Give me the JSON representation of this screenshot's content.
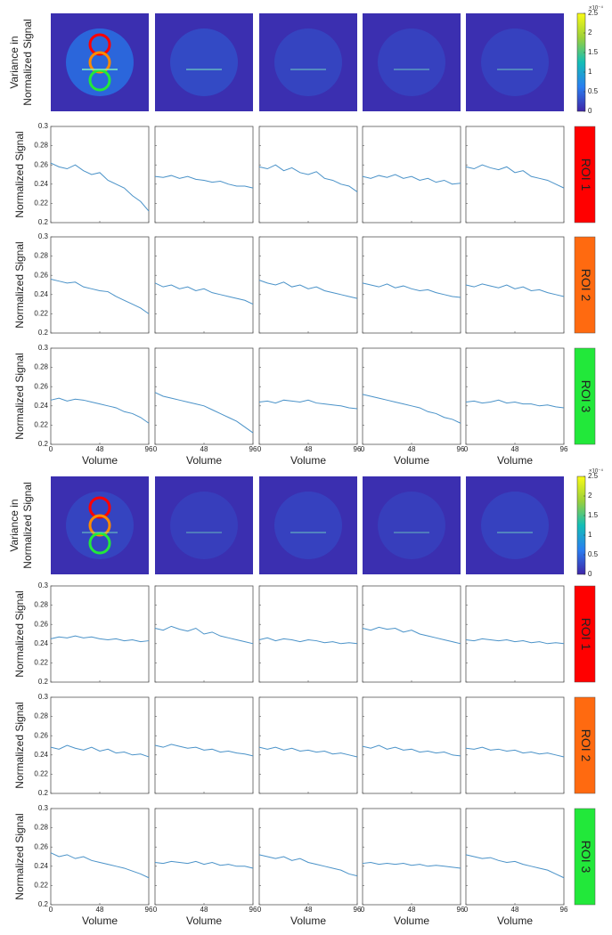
{
  "axes": {
    "xlabel": "Volume",
    "ylabel": "Normalized Signal",
    "image_label": [
      "Variance in",
      "Normalized Signal"
    ],
    "x": [
      0,
      8,
      16,
      24,
      32,
      40,
      48,
      56,
      64,
      72,
      80,
      88,
      96
    ],
    "xlim": [
      0,
      96
    ],
    "xticks": [
      0,
      48,
      96
    ],
    "ylim": [
      0.2,
      0.3
    ],
    "yticks": [
      0.2,
      0.22,
      0.24,
      0.26,
      0.28,
      0.3
    ],
    "line_color": "#4a92c8"
  },
  "panels": [
    {
      "colorbar": {
        "lim": [
          0,
          2.5
        ],
        "ticks": [
          0,
          0.5,
          1,
          1.5,
          2,
          2.5
        ],
        "exponent": "×10⁻⁴"
      },
      "rows": [
        {
          "roi": "ROI 1",
          "color": "#ff0000",
          "series": [
            [
              0.262,
              0.258,
              0.256,
              0.26,
              0.254,
              0.25,
              0.252,
              0.244,
              0.24,
              0.236,
              0.228,
              0.222,
              0.212
            ],
            [
              0.248,
              0.247,
              0.249,
              0.246,
              0.248,
              0.245,
              0.244,
              0.242,
              0.243,
              0.24,
              0.238,
              0.238,
              0.236
            ],
            [
              0.258,
              0.256,
              0.26,
              0.254,
              0.257,
              0.252,
              0.25,
              0.253,
              0.246,
              0.244,
              0.24,
              0.238,
              0.232
            ],
            [
              0.248,
              0.246,
              0.249,
              0.247,
              0.25,
              0.246,
              0.248,
              0.244,
              0.246,
              0.242,
              0.244,
              0.24,
              0.241
            ],
            [
              0.258,
              0.256,
              0.26,
              0.257,
              0.255,
              0.258,
              0.252,
              0.254,
              0.248,
              0.246,
              0.244,
              0.24,
              0.236
            ]
          ]
        },
        {
          "roi": "ROI 2",
          "color": "#ff6a10",
          "series": [
            [
              0.256,
              0.254,
              0.252,
              0.253,
              0.248,
              0.246,
              0.244,
              0.243,
              0.238,
              0.234,
              0.23,
              0.226,
              0.22
            ],
            [
              0.252,
              0.248,
              0.25,
              0.246,
              0.248,
              0.244,
              0.246,
              0.242,
              0.24,
              0.238,
              0.236,
              0.234,
              0.23
            ],
            [
              0.255,
              0.252,
              0.25,
              0.253,
              0.248,
              0.25,
              0.246,
              0.248,
              0.244,
              0.242,
              0.24,
              0.238,
              0.236
            ],
            [
              0.252,
              0.25,
              0.248,
              0.251,
              0.247,
              0.249,
              0.246,
              0.244,
              0.245,
              0.242,
              0.24,
              0.238,
              0.237
            ],
            [
              0.25,
              0.248,
              0.251,
              0.249,
              0.247,
              0.25,
              0.246,
              0.248,
              0.244,
              0.245,
              0.242,
              0.24,
              0.238
            ]
          ]
        },
        {
          "roi": "ROI 3",
          "color": "#22e83a",
          "series": [
            [
              0.246,
              0.248,
              0.245,
              0.247,
              0.246,
              0.244,
              0.242,
              0.24,
              0.238,
              0.234,
              0.232,
              0.228,
              0.222
            ],
            [
              0.254,
              0.25,
              0.248,
              0.246,
              0.244,
              0.242,
              0.24,
              0.236,
              0.232,
              0.228,
              0.224,
              0.218,
              0.212
            ],
            [
              0.244,
              0.245,
              0.243,
              0.246,
              0.245,
              0.244,
              0.246,
              0.243,
              0.242,
              0.241,
              0.24,
              0.238,
              0.237
            ],
            [
              0.252,
              0.25,
              0.248,
              0.246,
              0.244,
              0.242,
              0.24,
              0.238,
              0.234,
              0.232,
              0.228,
              0.226,
              0.222
            ],
            [
              0.244,
              0.245,
              0.243,
              0.244,
              0.246,
              0.243,
              0.244,
              0.242,
              0.242,
              0.24,
              0.241,
              0.239,
              0.238
            ]
          ]
        }
      ]
    },
    {
      "colorbar": {
        "lim": [
          0,
          2.5
        ],
        "ticks": [
          0,
          0.5,
          1,
          1.5,
          2,
          2.5
        ],
        "exponent": "×10⁻⁴"
      },
      "rows": [
        {
          "roi": "ROI 1",
          "color": "#ff0000",
          "series": [
            [
              0.245,
              0.247,
              0.246,
              0.248,
              0.246,
              0.247,
              0.245,
              0.244,
              0.245,
              0.243,
              0.244,
              0.242,
              0.243
            ],
            [
              0.256,
              0.254,
              0.258,
              0.255,
              0.253,
              0.256,
              0.25,
              0.252,
              0.248,
              0.246,
              0.244,
              0.242,
              0.24
            ],
            [
              0.244,
              0.246,
              0.243,
              0.245,
              0.244,
              0.242,
              0.244,
              0.243,
              0.241,
              0.242,
              0.24,
              0.241,
              0.24
            ],
            [
              0.256,
              0.254,
              0.257,
              0.255,
              0.256,
              0.252,
              0.254,
              0.25,
              0.248,
              0.246,
              0.244,
              0.242,
              0.24
            ],
            [
              0.244,
              0.243,
              0.245,
              0.244,
              0.243,
              0.244,
              0.242,
              0.243,
              0.241,
              0.242,
              0.24,
              0.241,
              0.24
            ]
          ]
        },
        {
          "roi": "ROI 2",
          "color": "#ff6a10",
          "series": [
            [
              0.248,
              0.246,
              0.25,
              0.247,
              0.245,
              0.248,
              0.244,
              0.246,
              0.242,
              0.243,
              0.24,
              0.241,
              0.238
            ],
            [
              0.25,
              0.248,
              0.251,
              0.249,
              0.247,
              0.248,
              0.245,
              0.246,
              0.243,
              0.244,
              0.242,
              0.241,
              0.239
            ],
            [
              0.248,
              0.246,
              0.248,
              0.245,
              0.247,
              0.244,
              0.245,
              0.243,
              0.244,
              0.241,
              0.242,
              0.24,
              0.238
            ],
            [
              0.249,
              0.247,
              0.25,
              0.246,
              0.248,
              0.245,
              0.246,
              0.243,
              0.244,
              0.242,
              0.243,
              0.24,
              0.239
            ],
            [
              0.247,
              0.246,
              0.248,
              0.245,
              0.246,
              0.244,
              0.245,
              0.242,
              0.243,
              0.241,
              0.242,
              0.24,
              0.238
            ]
          ]
        },
        {
          "roi": "ROI 3",
          "color": "#22e83a",
          "series": [
            [
              0.254,
              0.25,
              0.252,
              0.248,
              0.25,
              0.246,
              0.244,
              0.242,
              0.24,
              0.238,
              0.235,
              0.232,
              0.228
            ],
            [
              0.244,
              0.243,
              0.245,
              0.244,
              0.243,
              0.245,
              0.242,
              0.244,
              0.241,
              0.242,
              0.24,
              0.24,
              0.238
            ],
            [
              0.252,
              0.25,
              0.248,
              0.25,
              0.246,
              0.248,
              0.244,
              0.242,
              0.24,
              0.238,
              0.236,
              0.232,
              0.23
            ],
            [
              0.243,
              0.244,
              0.242,
              0.243,
              0.242,
              0.243,
              0.241,
              0.242,
              0.24,
              0.241,
              0.24,
              0.239,
              0.238
            ],
            [
              0.252,
              0.25,
              0.248,
              0.249,
              0.246,
              0.244,
              0.245,
              0.242,
              0.24,
              0.238,
              0.236,
              0.232,
              0.228
            ]
          ]
        }
      ]
    }
  ]
}
